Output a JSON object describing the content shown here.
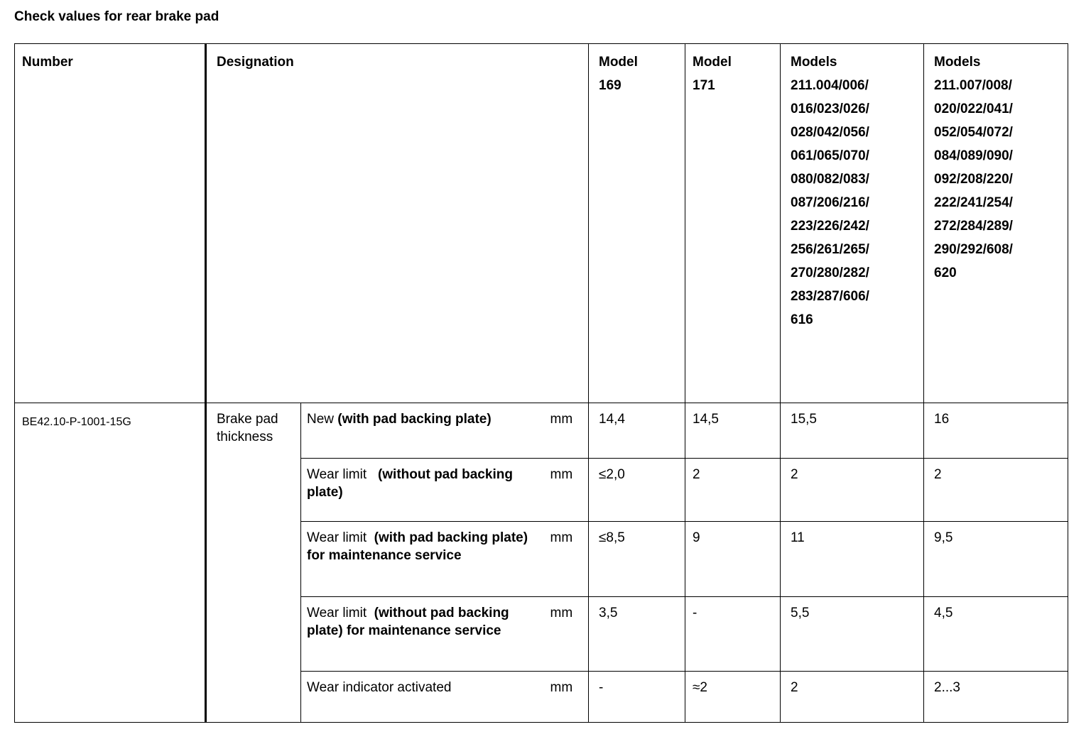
{
  "title": "Check values for rear brake pad",
  "headers": {
    "number": "Number",
    "designation": "Designation",
    "col1": [
      "Model",
      "169"
    ],
    "col2": [
      "Model",
      "171"
    ],
    "col3": [
      "Models",
      "211.004/006/",
      "016/023/026/",
      "028/042/056/",
      "061/065/070/",
      "080/082/083/",
      "087/206/216/",
      "223/226/242/",
      "256/261/265/",
      "270/280/282/",
      "283/287/606/",
      "616"
    ],
    "col4": [
      "Models",
      "211.007/008/",
      "020/022/041/",
      "052/054/072/",
      "084/089/090/",
      "092/208/220/",
      "222/241/254/",
      "272/284/289/",
      "290/292/608/",
      "620"
    ]
  },
  "number": "BE42.10-P-1001-15G",
  "designation": "Brake pad thickness",
  "rows": [
    {
      "item_plain": "New ",
      "item_bold": "(with pad backing plate)",
      "unit": "mm",
      "values": [
        "14,4",
        "14,5",
        "15,5",
        "16"
      ]
    },
    {
      "item_plain": "Wear limit   ",
      "item_bold": "(without pad backing plate)",
      "unit": "mm",
      "values": [
        "≤2,0",
        "2",
        "2",
        "2"
      ]
    },
    {
      "item_plain": "Wear limit  ",
      "item_bold": "(with pad backing plate) for maintenance service",
      "unit": "mm",
      "values": [
        "≤8,5",
        "9",
        "11",
        "9,5"
      ]
    },
    {
      "item_plain": "Wear limit  ",
      "item_bold": "(without pad backing plate) for maintenance service",
      "unit": "mm",
      "values": [
        "3,5",
        "-",
        "5,5",
        "4,5"
      ]
    },
    {
      "item_plain": "Wear indicator activated",
      "item_bold": "",
      "unit": "mm",
      "values": [
        "-",
        "≈2",
        "2",
        "2...3"
      ]
    }
  ]
}
